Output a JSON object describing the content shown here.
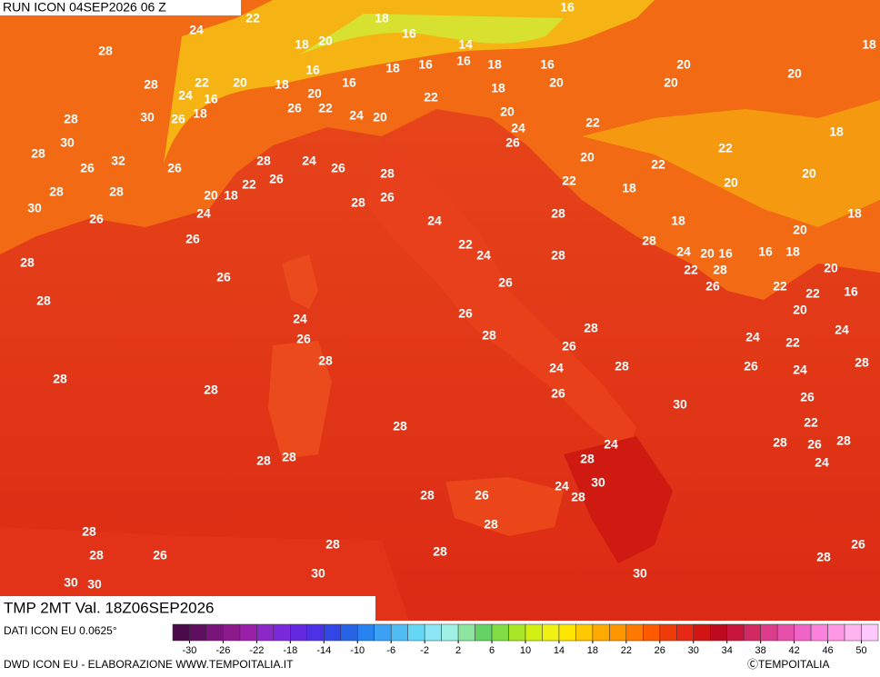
{
  "header": {
    "run": "RUN ICON 04SEP2026 06 Z",
    "field": "TMP 2MT Val. 18Z06SEP2026"
  },
  "footer": {
    "source": "DATI ICON EU 0.0625°",
    "credit": "DWD ICON EU - ELABORAZIONE WWW.TEMPOITALIA.IT",
    "copyright": "ⒸTEMPOITALIA"
  },
  "colorbar": {
    "range": [
      -32,
      52
    ],
    "ticks": [
      -30,
      -26,
      -22,
      -18,
      -14,
      -10,
      -6,
      -2,
      2,
      6,
      10,
      14,
      18,
      22,
      26,
      30,
      34,
      38,
      42,
      46,
      50
    ],
    "colors": [
      "#4b0a4b",
      "#5f0f5f",
      "#78147a",
      "#8c1a8c",
      "#9b1fa8",
      "#8a28c8",
      "#7a2adc",
      "#6328e0",
      "#4b32e6",
      "#3246e6",
      "#2864e6",
      "#2882f0",
      "#3ca0f5",
      "#50bef5",
      "#64d7f5",
      "#8ce6f5",
      "#a0f0e6",
      "#8ce6a0",
      "#64d264",
      "#82dc46",
      "#aae628",
      "#d2f014",
      "#f0f014",
      "#ffe600",
      "#ffc800",
      "#ffaa00",
      "#ff9600",
      "#ff7800",
      "#ff5a00",
      "#f03c0a",
      "#e62814",
      "#d21414",
      "#be0a1e",
      "#c8143c",
      "#d22864",
      "#dc3c8c",
      "#e650aa",
      "#f064c8",
      "#fa82dc",
      "#ff96e6",
      "#ffb4f0",
      "#ffc8fa"
    ]
  },
  "map": {
    "labels": [
      22,
      24,
      18,
      16,
      28,
      18,
      20,
      16,
      14,
      18,
      28,
      22,
      24,
      16,
      20,
      18,
      16,
      16,
      18,
      16,
      16,
      18,
      16,
      18,
      20,
      20,
      20,
      20,
      28,
      30,
      26,
      18,
      26,
      22,
      20,
      24,
      20,
      22,
      20,
      24,
      26,
      22,
      30,
      28,
      32,
      26,
      26,
      28,
      24,
      26,
      28,
      22,
      18,
      20,
      22,
      28,
      28,
      20,
      18,
      22,
      26,
      28,
      26,
      22,
      18,
      20,
      20,
      30,
      26,
      24,
      26,
      24,
      28,
      18,
      18,
      22,
      24,
      28,
      28,
      20,
      16,
      18,
      24,
      20,
      16,
      28,
      22,
      28,
      20,
      26,
      26,
      26,
      22,
      22,
      16,
      28,
      24,
      26,
      20,
      28,
      24,
      22,
      24,
      26,
      28,
      26,
      28,
      24,
      28,
      26,
      24,
      28,
      28,
      28,
      26,
      30,
      26,
      28,
      22,
      24,
      28,
      26,
      28,
      28,
      28,
      28,
      24,
      30,
      24,
      28,
      28,
      26,
      28,
      28,
      28,
      28,
      26,
      28,
      26,
      28,
      30,
      30,
      30,
      30
    ]
  }
}
